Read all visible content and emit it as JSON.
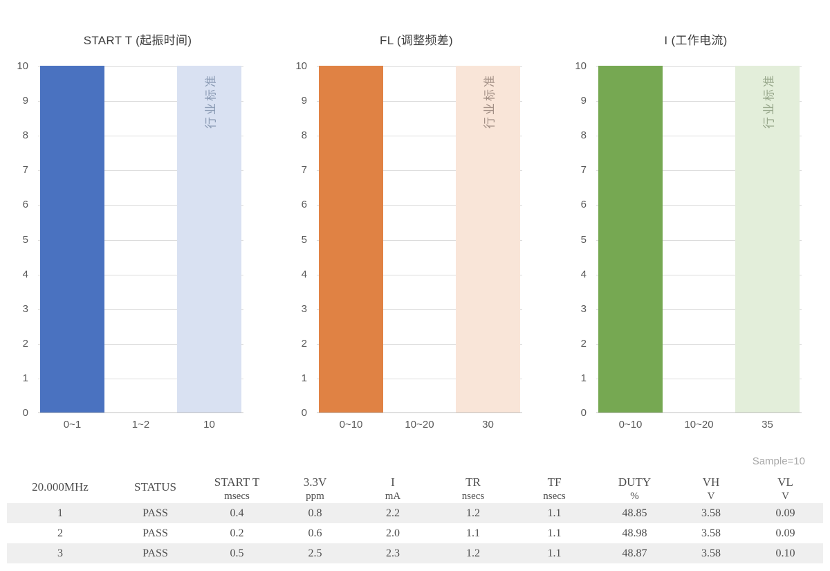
{
  "sample_note": "Sample=10",
  "colors": {
    "row_stripe": "#efefef",
    "grid_line": "#dcdcdc",
    "axis_line": "#c0c0c0",
    "axis_text": "#595959"
  },
  "chart_data": [
    {
      "type": "bar",
      "title": "START T (起振时间)",
      "categories": [
        "0~1",
        "1~2",
        "10"
      ],
      "values": [
        10,
        0,
        10
      ],
      "ylim": [
        0,
        10
      ],
      "y_ticks": [
        0,
        1,
        2,
        3,
        4,
        5,
        6,
        7,
        8,
        9,
        10
      ],
      "grid": true,
      "legend": false,
      "bar_colors": [
        "#4a72c0",
        null,
        "#d9e1f2"
      ],
      "annotations": [
        {
          "text": "行业标准",
          "bar_index": 2,
          "rotation_deg": -90,
          "color": "#8c9cb5"
        }
      ]
    },
    {
      "type": "bar",
      "title": "FL (调整频差)",
      "categories": [
        "0~10",
        "10~20",
        "30"
      ],
      "values": [
        10,
        0,
        10
      ],
      "ylim": [
        0,
        10
      ],
      "y_ticks": [
        0,
        1,
        2,
        3,
        4,
        5,
        6,
        7,
        8,
        9,
        10
      ],
      "grid": true,
      "legend": false,
      "bar_colors": [
        "#e08244",
        null,
        "#f9e5d8"
      ],
      "annotations": [
        {
          "text": "行业标准",
          "bar_index": 2,
          "rotation_deg": -90,
          "color": "#a39086"
        }
      ]
    },
    {
      "type": "bar",
      "title": "I (工作电流)",
      "categories": [
        "0~10",
        "10~20",
        "35"
      ],
      "values": [
        10,
        0,
        10
      ],
      "ylim": [
        0,
        10
      ],
      "y_ticks": [
        0,
        1,
        2,
        3,
        4,
        5,
        6,
        7,
        8,
        9,
        10
      ],
      "grid": true,
      "legend": false,
      "bar_colors": [
        "#76a852",
        null,
        "#e3eeda"
      ],
      "annotations": [
        {
          "text": "行业标准",
          "bar_index": 2,
          "rotation_deg": -90,
          "color": "#98a88c"
        }
      ]
    }
  ],
  "table": {
    "columns": [
      {
        "name": "20.000MHz",
        "unit": ""
      },
      {
        "name": "STATUS",
        "unit": ""
      },
      {
        "name": "START T",
        "unit": "msecs"
      },
      {
        "name": "3.3V",
        "unit": "ppm"
      },
      {
        "name": "I",
        "unit": "mA"
      },
      {
        "name": "TR",
        "unit": "nsecs"
      },
      {
        "name": "TF",
        "unit": "nsecs"
      },
      {
        "name": "DUTY",
        "unit": "%"
      },
      {
        "name": "VH",
        "unit": "V"
      },
      {
        "name": "VL",
        "unit": "V"
      }
    ],
    "rows": [
      [
        "1",
        "PASS",
        "0.4",
        "0.8",
        "2.2",
        "1.2",
        "1.1",
        "48.85",
        "3.58",
        "0.09"
      ],
      [
        "2",
        "PASS",
        "0.2",
        "0.6",
        "2.0",
        "1.1",
        "1.1",
        "48.98",
        "3.58",
        "0.09"
      ],
      [
        "3",
        "PASS",
        "0.5",
        "2.5",
        "2.3",
        "1.2",
        "1.1",
        "48.87",
        "3.58",
        "0.10"
      ]
    ]
  }
}
